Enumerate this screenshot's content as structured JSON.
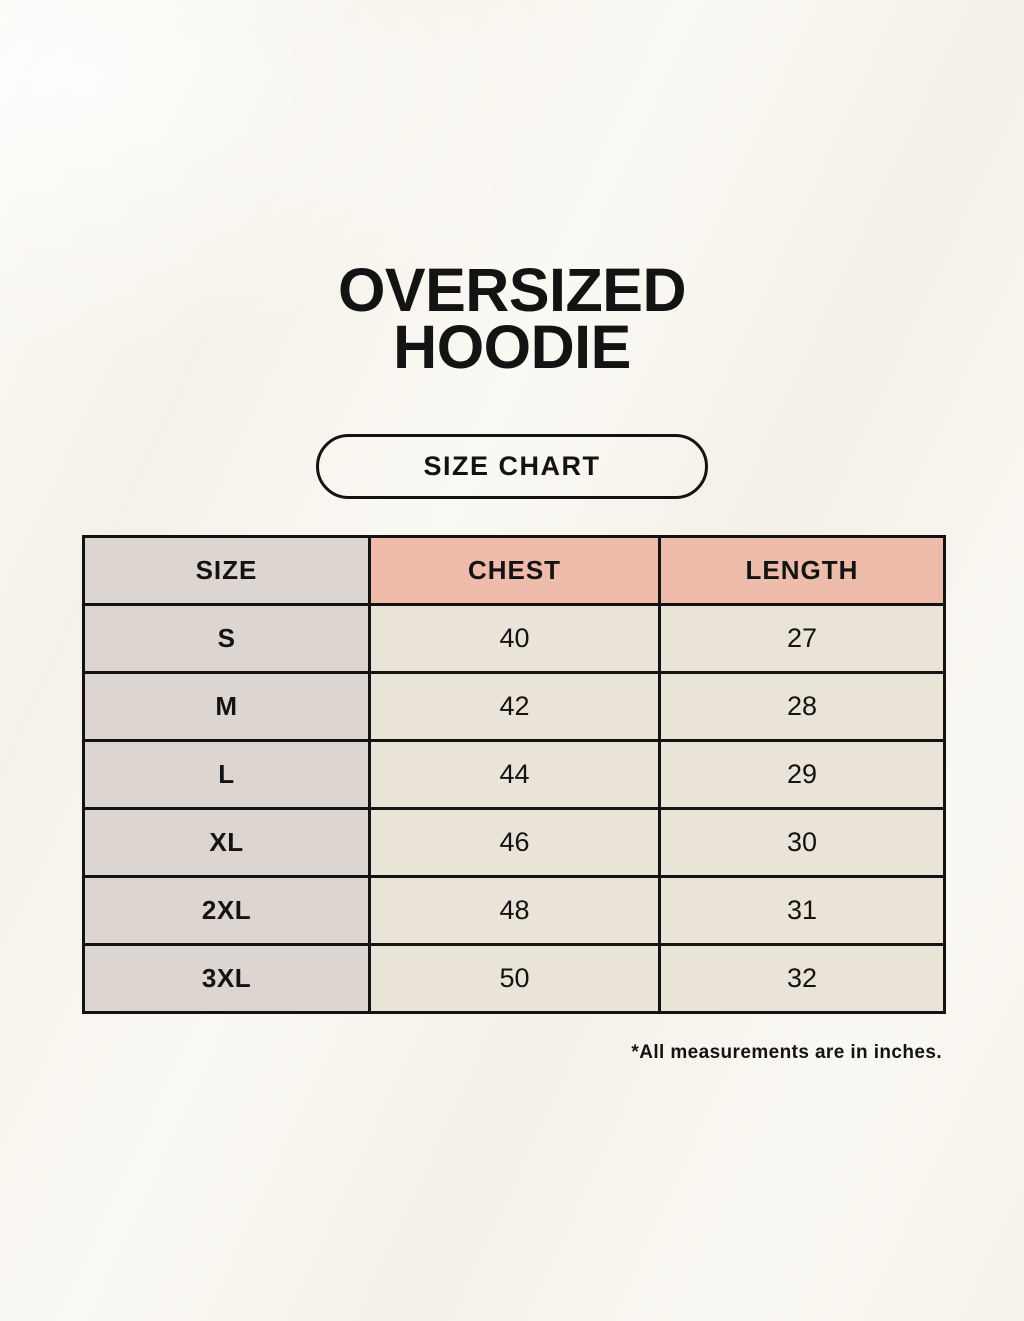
{
  "page": {
    "title_line1": "OVERSIZED",
    "title_line2": "HOODIE",
    "badge_label": "SIZE CHART",
    "footnote": "*All measurements are in inches."
  },
  "table": {
    "headers": [
      "SIZE",
      "CHEST",
      "LENGTH"
    ],
    "rows": [
      {
        "size": "S",
        "chest": "40",
        "length": "27"
      },
      {
        "size": "M",
        "chest": "42",
        "length": "28"
      },
      {
        "size": "L",
        "chest": "44",
        "length": "29"
      },
      {
        "size": "XL",
        "chest": "46",
        "length": "30"
      },
      {
        "size": "2XL",
        "chest": "48",
        "length": "31"
      },
      {
        "size": "3XL",
        "chest": "50",
        "length": "32"
      }
    ]
  },
  "colors": {
    "background": "#f7f4eb",
    "header_pink": "#efbcab",
    "size_col_gray": "#dcd5d0",
    "cell_cream": "#eae3d7",
    "ink": "#131313"
  },
  "chart_data": {
    "type": "table",
    "title": "Oversized Hoodie Size Chart",
    "columns": [
      "SIZE",
      "CHEST",
      "LENGTH"
    ],
    "rows": [
      [
        "S",
        40,
        27
      ],
      [
        "M",
        42,
        28
      ],
      [
        "L",
        44,
        29
      ],
      [
        "XL",
        46,
        30
      ],
      [
        "2XL",
        48,
        31
      ],
      [
        "3XL",
        50,
        32
      ]
    ],
    "units": "inches",
    "note": "*All measurements are in inches."
  }
}
